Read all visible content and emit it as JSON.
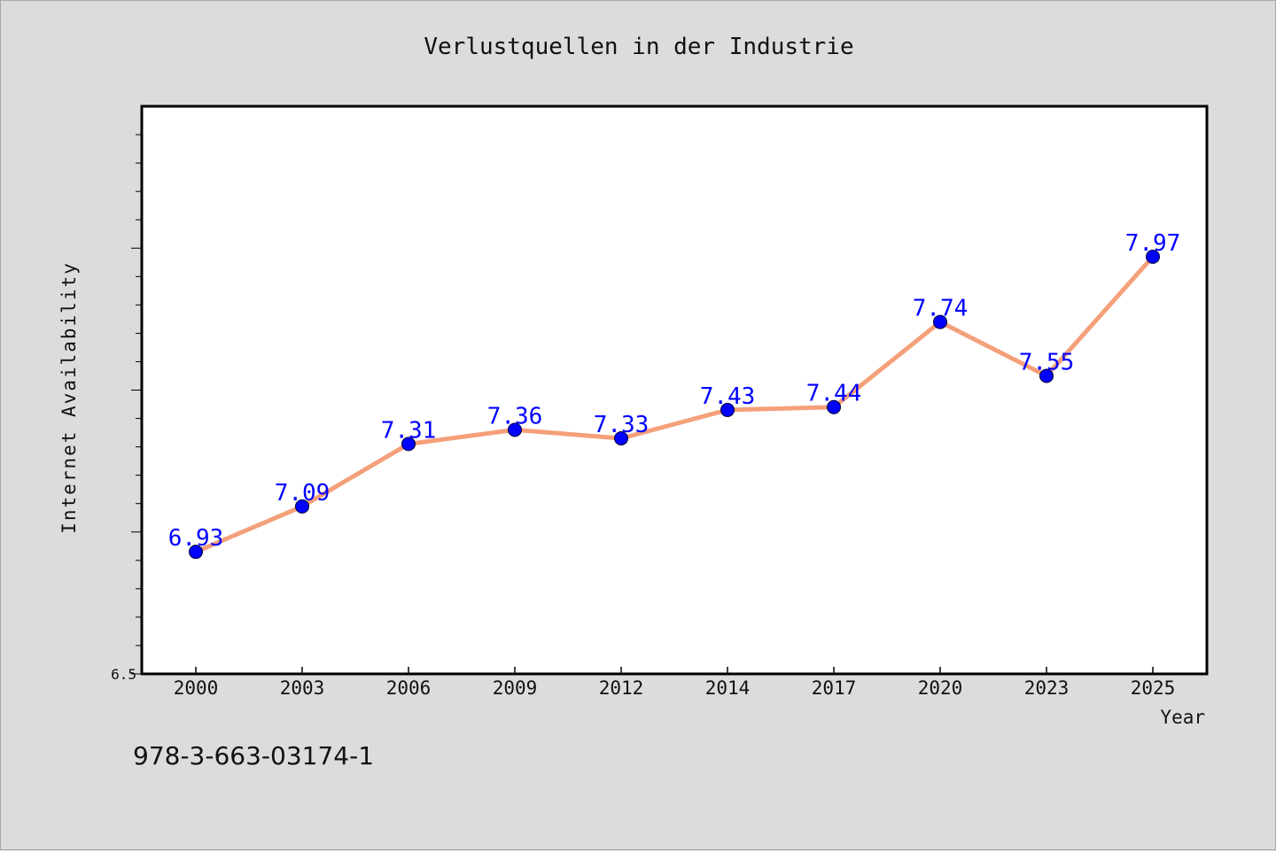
{
  "chart_data": {
    "type": "line",
    "title": "Verlustquellen in der Industrie",
    "xlabel": "Year",
    "ylabel": "Internet Availability",
    "categories": [
      "2000",
      "2003",
      "2006",
      "2009",
      "2012",
      "2014",
      "2017",
      "2020",
      "2023",
      "2025"
    ],
    "series": [
      {
        "values": [
          6.93,
          7.09,
          7.31,
          7.36,
          7.33,
          7.43,
          7.44,
          7.74,
          7.55,
          7.97
        ]
      }
    ],
    "ylim": [
      6.5,
      8.5
    ],
    "y_tick_labels": [
      "6.5"
    ],
    "grid": false,
    "data_labels": true,
    "line_color": "#f4a07a",
    "marker_color": "#0000ff",
    "label_color": "#0000ff"
  },
  "footer": {
    "code": "978-3-663-03174-1"
  }
}
